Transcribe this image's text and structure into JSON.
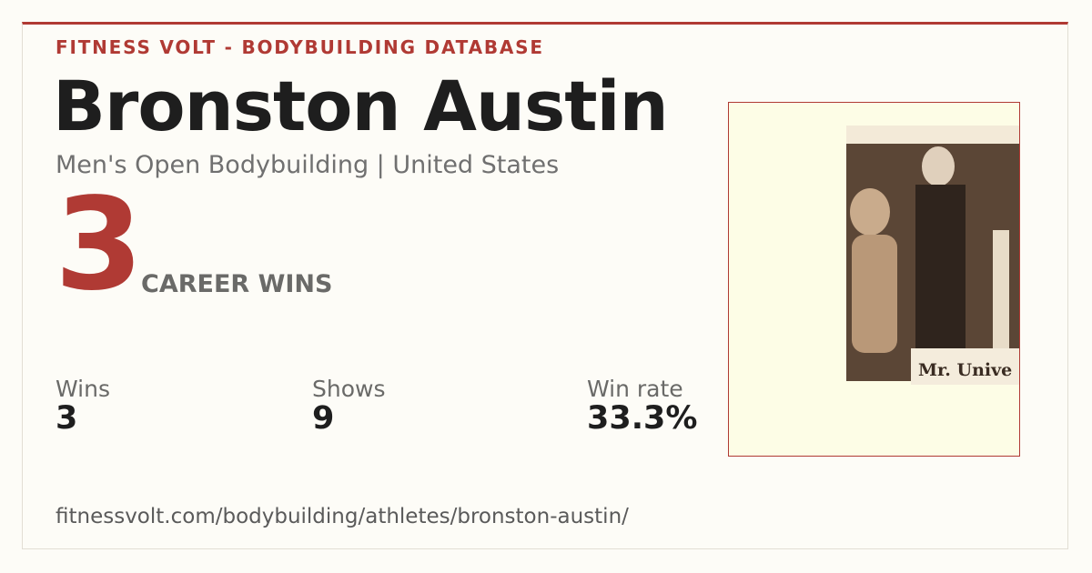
{
  "header": {
    "brand": "FITNESS VOLT - BODYBUILDING DATABASE",
    "name": "Bronston Austin",
    "subtitle": "Men's Open Bodybuilding | United States"
  },
  "highlight": {
    "value": 3,
    "label": "CAREER WINS"
  },
  "stats": [
    {
      "label": "Wins",
      "value": 3
    },
    {
      "label": "Shows",
      "value": 9
    },
    {
      "label": "Win rate",
      "value": "33.3%"
    }
  ],
  "photo": {
    "sign_text": "Mr. Unive"
  },
  "footer": {
    "url": "fitnessvolt.com/bodybuilding/athletes/bronston-austin/"
  }
}
